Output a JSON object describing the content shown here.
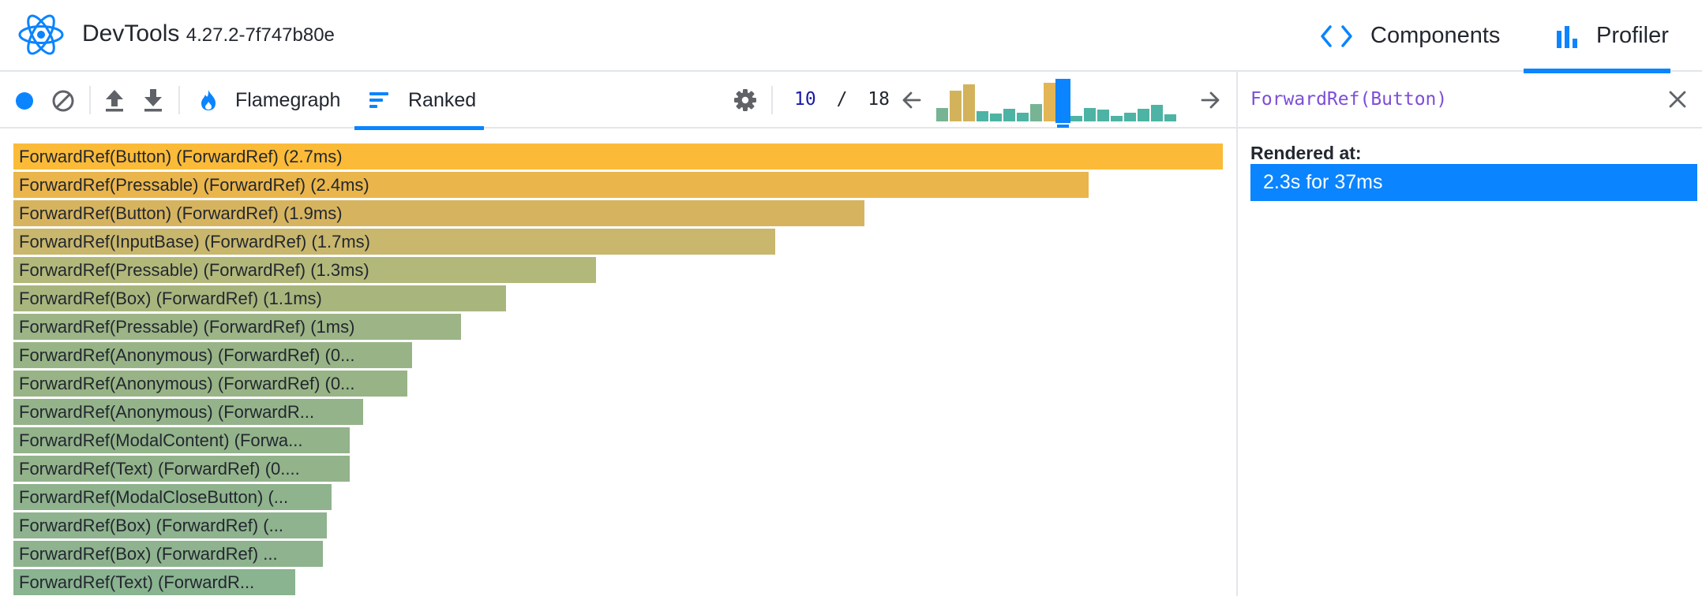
{
  "colors": {
    "accent": "#0a84ff",
    "record": "#0a84ff",
    "component_name": "#7c4ed8"
  },
  "header": {
    "app_name": "DevTools",
    "version": "4.27.2-7f747b80e",
    "logo_icon": "react-logo-icon",
    "tabs": [
      {
        "label": "Components",
        "icon": "code-brackets-icon",
        "active": false
      },
      {
        "label": "Profiler",
        "icon": "bar-chart-icon",
        "active": true
      }
    ]
  },
  "toolbar": {
    "buttons": [
      {
        "name": "record-button",
        "icon": "record-icon"
      },
      {
        "name": "clear-button",
        "icon": "no-entry-icon"
      },
      {
        "name": "load-profile-button",
        "icon": "upload-icon"
      },
      {
        "name": "save-profile-button",
        "icon": "download-icon"
      }
    ],
    "view_tabs": [
      {
        "label": "Flamegraph",
        "icon": "flame-icon",
        "active": false
      },
      {
        "label": "Ranked",
        "icon": "ranked-icon",
        "active": true
      }
    ],
    "settings_icon": "gear-icon",
    "commit": {
      "current": "10",
      "separator": "/",
      "total": "18"
    },
    "prev_icon": "arrow-left-icon",
    "next_icon": "arrow-right-icon",
    "commit_bars": [
      {
        "level": 0.33,
        "color": "#76b493"
      },
      {
        "level": 0.75,
        "color": "#d2b35b"
      },
      {
        "level": 0.9,
        "color": "#d2b35b"
      },
      {
        "level": 0.25,
        "color": "#4db3a4"
      },
      {
        "level": 0.2,
        "color": "#4db3a4"
      },
      {
        "level": 0.3,
        "color": "#4db3a4"
      },
      {
        "level": 0.22,
        "color": "#4db3a4"
      },
      {
        "level": 0.42,
        "color": "#76b493"
      },
      {
        "level": 0.95,
        "color": "#e3b555"
      },
      {
        "level": 1.0,
        "color": "#0a84ff",
        "selected": true
      },
      {
        "level": 0.13,
        "color": "#4db3a4"
      },
      {
        "level": 0.33,
        "color": "#4db3a4"
      },
      {
        "level": 0.28,
        "color": "#4db3a4"
      },
      {
        "level": 0.13,
        "color": "#4db3a4"
      },
      {
        "level": 0.22,
        "color": "#4db3a4"
      },
      {
        "level": 0.3,
        "color": "#4db3a4"
      },
      {
        "level": 0.4,
        "color": "#4db3a4"
      },
      {
        "level": 0.17,
        "color": "#4db3a4"
      }
    ]
  },
  "ranked": [
    {
      "label": "ForwardRef(Button) (ForwardRef) (2.7ms)",
      "value": 2.7,
      "color": "#fbbb38"
    },
    {
      "label": "ForwardRef(Pressable) (ForwardRef) (2.4ms)",
      "value": 2.4,
      "color": "#eab54b"
    },
    {
      "label": "ForwardRef(Button) (ForwardRef) (1.9ms)",
      "value": 1.9,
      "color": "#d6b45f"
    },
    {
      "label": "ForwardRef(InputBase) (ForwardRef) (1.7ms)",
      "value": 1.7,
      "color": "#c8b76c"
    },
    {
      "label": "ForwardRef(Pressable) (ForwardRef) (1.3ms)",
      "value": 1.3,
      "color": "#b2b87a"
    },
    {
      "label": "ForwardRef(Box) (ForwardRef) (1.1ms)",
      "value": 1.1,
      "color": "#a8b67e"
    },
    {
      "label": "ForwardRef(Pressable) (ForwardRef) (1ms)",
      "value": 1.0,
      "color": "#9cb486"
    },
    {
      "label": "ForwardRef(Anonymous) (ForwardRef) (0...",
      "value": 0.89,
      "color": "#98b486"
    },
    {
      "label": "ForwardRef(Anonymous) (ForwardRef) (0...",
      "value": 0.88,
      "color": "#98b486"
    },
    {
      "label": "ForwardRef(Anonymous) (ForwardR...",
      "value": 0.78,
      "color": "#94b38a"
    },
    {
      "label": "ForwardRef(ModalContent) (Forwa...",
      "value": 0.75,
      "color": "#93b38b"
    },
    {
      "label": "ForwardRef(Text) (ForwardRef) (0....",
      "value": 0.75,
      "color": "#93b38b"
    },
    {
      "label": "ForwardRef(ModalCloseButton) (...",
      "value": 0.71,
      "color": "#8fb38d"
    },
    {
      "label": "ForwardRef(Box) (ForwardRef) (...",
      "value": 0.7,
      "color": "#8eb38e"
    },
    {
      "label": "ForwardRef(Box) (ForwardRef) ...",
      "value": 0.69,
      "color": "#8eb38e"
    },
    {
      "label": "ForwardRef(Text) (ForwardR...",
      "value": 0.63,
      "color": "#8ab390"
    }
  ],
  "side_panel": {
    "title": "ForwardRef(Button)",
    "close_icon": "close-icon",
    "rendered_at_label": "Rendered at:",
    "rendered_items": [
      "2.3s for 37ms"
    ]
  }
}
